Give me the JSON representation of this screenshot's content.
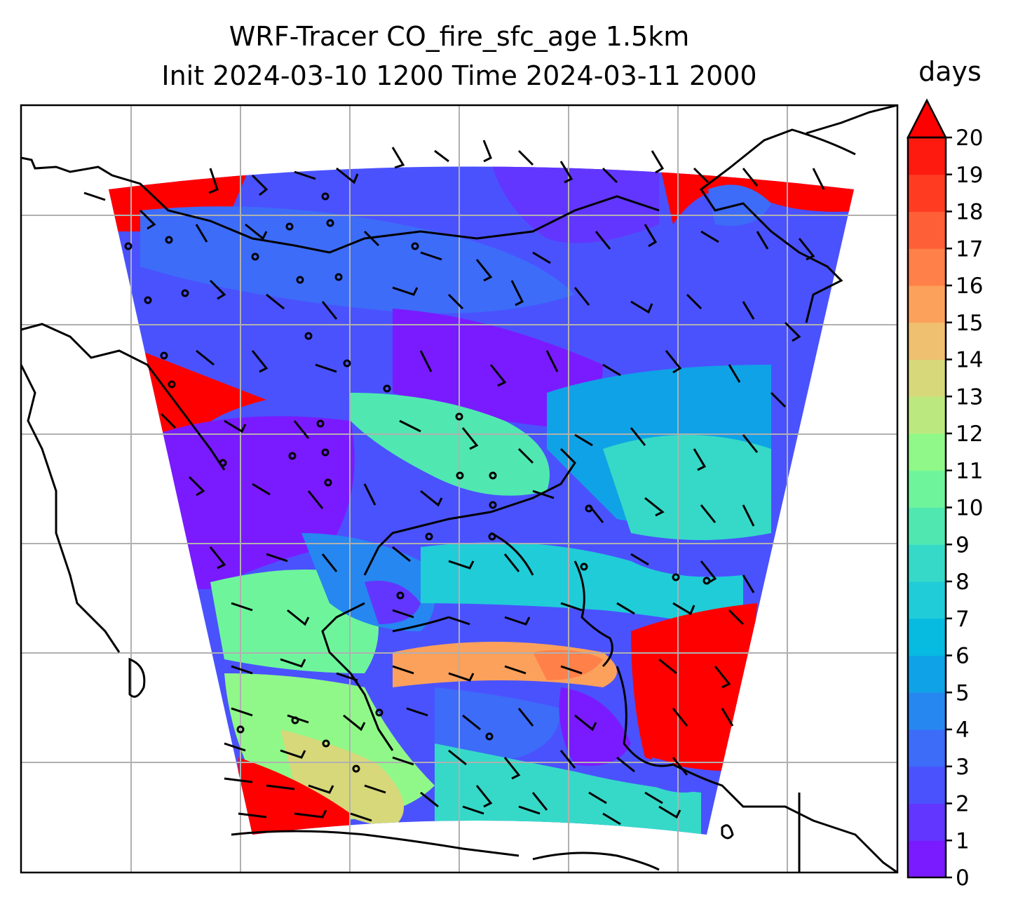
{
  "title": {
    "line1": "WRF-Tracer CO_fire_sfc_age 1.5km",
    "line2": "Init 2024-03-10 1200 Time 2024-03-11 2000"
  },
  "colorbar": {
    "unit": "days",
    "min": 0,
    "max": 20,
    "extend": "max",
    "tick_labels": [
      "0",
      "1",
      "2",
      "3",
      "4",
      "5",
      "6",
      "7",
      "8",
      "9",
      "10",
      "11",
      "12",
      "13",
      "14",
      "15",
      "16",
      "17",
      "18",
      "19",
      "20"
    ],
    "colors": [
      "#7a1bff",
      "#6236ff",
      "#4a52fe",
      "#3d6cf8",
      "#2687f0",
      "#10a2e6",
      "#07bae0",
      "#20ccd8",
      "#36d9c8",
      "#50e8b0",
      "#6ef59c",
      "#90f889",
      "#bce97f",
      "#d6d87a",
      "#eec070",
      "#fca15c",
      "#ff8048",
      "#ff5f36",
      "#ff3c22",
      "#ff1a10"
    ],
    "extend_color": "#ff0000"
  },
  "map": {
    "field": "CO_fire_sfc_age",
    "overlays": [
      "coastlines",
      "wind-barbs",
      "gridlines"
    ],
    "gridline_color": "#b0b0b0"
  }
}
